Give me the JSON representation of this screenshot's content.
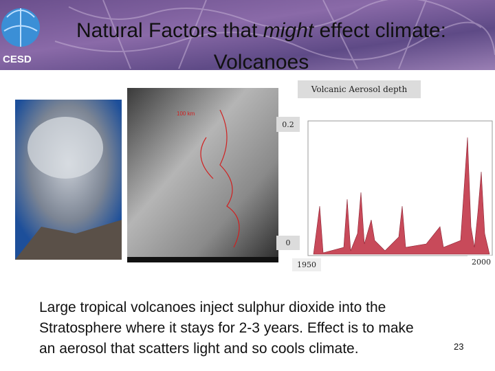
{
  "header": {
    "logo": "CESD",
    "title": {
      "before": "Natural Factors that ",
      "emphasis": "might",
      "after": " effect climate:",
      "line2": "Volcanoes"
    }
  },
  "figure": {
    "caption": "Volcanic Aerosol depth",
    "y_top": "0.2",
    "y_bottom": "0",
    "x_start": "1950",
    "x_end": "2000",
    "scale_label": "100 km"
  },
  "body": {
    "lines": [
      "Large tropical volcanoes inject sulphur dioxide into the",
      "Stratosphere where it stays for 2-3 years. Effect is to make",
      "an aerosol that scatters light and so cools climate."
    ]
  },
  "footer": {
    "page_number": "23"
  }
}
